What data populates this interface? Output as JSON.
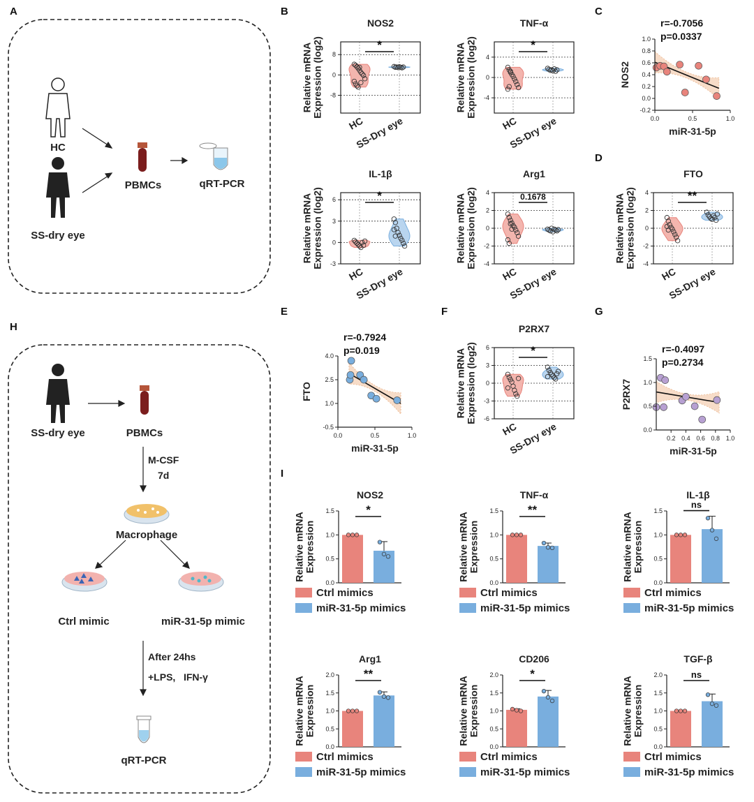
{
  "colors": {
    "red": "#E8847C",
    "blue": "#79AEDE",
    "purple": "#B7A0D2",
    "redFill": "#F3B5AE",
    "blueFill": "#B9D5EF",
    "bandFill": "#F6D7BF"
  },
  "panel_labels": [
    "A",
    "B",
    "C",
    "D",
    "E",
    "F",
    "G",
    "H",
    "I"
  ],
  "schematic_a": {
    "hc": "HC",
    "ss": "SS-dry eye",
    "pbmcs": "PBMCs",
    "qrt": "qRT-PCR"
  },
  "schematic_h": {
    "ss": "SS-dry eye",
    "pbmcs": "PBMCs",
    "mcsf": "M-CSF",
    "days": "7d",
    "macrophage": "Macrophage",
    "ctrl": "Ctrl mimic",
    "mir": "miR-31-5p mimic",
    "after": "After 24hs",
    "lps": "+LPS,   IFN-γ",
    "qrt": "qRT-PCR"
  },
  "chart_data": [
    {
      "id": "B-NOS2",
      "type": "violin",
      "title": "NOS2",
      "ylabel": [
        "Relative mRNA",
        "Expression (log2)"
      ],
      "categories": [
        "HC",
        "SS-Dry eye"
      ],
      "yticks": [
        8,
        0,
        -8
      ],
      "ylim": [
        -15,
        13
      ],
      "sig": "*",
      "groups": [
        {
          "name": "HC",
          "values": [
            4.2,
            3.8,
            3.2,
            2.6,
            1.8,
            1.0,
            0.4,
            -0.2,
            -1.5,
            -2.5,
            -3.5,
            -4.3,
            -4.8,
            3.0,
            -3.0
          ]
        },
        {
          "name": "SS-Dry eye",
          "values": [
            3.3,
            3.0,
            3.1,
            2.9,
            3.2,
            3.0,
            2.8,
            3.1
          ]
        }
      ]
    },
    {
      "id": "B-TNF",
      "type": "violin",
      "title": "TNF-α",
      "ylabel": [
        "Relative mRNA",
        "Expression (log2)"
      ],
      "categories": [
        "HC",
        "SS-Dry eye"
      ],
      "yticks": [
        4,
        0,
        -4
      ],
      "ylim": [
        -7,
        7
      ],
      "sig": "*",
      "groups": [
        {
          "name": "HC",
          "values": [
            2.0,
            1.5,
            1.0,
            0.6,
            0.2,
            -0.3,
            -0.8,
            -1.4,
            -2.0,
            -2.3,
            -1.8,
            1.2
          ]
        },
        {
          "name": "SS-Dry eye",
          "values": [
            1.8,
            1.6,
            1.4,
            1.5,
            1.3,
            1.7,
            1.2,
            1.5
          ]
        }
      ]
    },
    {
      "id": "B-IL1B",
      "type": "violin",
      "title": "IL-1β",
      "ylabel": [
        "Relative mRNA",
        "Expression (log2)"
      ],
      "categories": [
        "HC",
        "SS-Dry eye"
      ],
      "yticks": [
        6,
        3,
        0,
        -3
      ],
      "ylim": [
        -3,
        7
      ],
      "sig": "*",
      "groups": [
        {
          "name": "HC",
          "values": [
            0.3,
            0.1,
            -0.1,
            -0.3,
            -0.5,
            -0.7,
            0.0,
            -0.4,
            0.2
          ]
        },
        {
          "name": "SS-Dry eye",
          "values": [
            3.3,
            2.8,
            2.0,
            1.4,
            1.0,
            0.6,
            0.3,
            -0.1,
            -0.5,
            1.8,
            0.9
          ]
        }
      ]
    },
    {
      "id": "B-ARG1",
      "type": "violin",
      "title": "Arg1",
      "ylabel": [
        "Relative mRNA",
        "Expression (log2)"
      ],
      "categories": [
        "HC",
        "SS-Dry eye"
      ],
      "yticks": [
        4,
        2,
        0,
        -2,
        -4
      ],
      "ylim": [
        -4,
        4
      ],
      "sig": "0.1678",
      "groups": [
        {
          "name": "HC",
          "values": [
            1.6,
            1.2,
            0.9,
            0.6,
            0.3,
            0.1,
            -0.2,
            -0.5,
            -0.9,
            -1.3,
            -1.7,
            0.5,
            -0.1
          ]
        },
        {
          "name": "SS-Dry eye",
          "values": [
            -0.1,
            -0.2,
            -0.3,
            0.0,
            -0.4,
            -0.1,
            -0.2,
            -0.3,
            -0.15
          ]
        }
      ]
    },
    {
      "id": "D-FTO",
      "type": "violin",
      "title": "FTO",
      "ylabel": [
        "Relative mRNA",
        "Expression (log2)"
      ],
      "categories": [
        "HC",
        "SS-Dry eye"
      ],
      "yticks": [
        4,
        2,
        0,
        -2,
        -4
      ],
      "ylim": [
        -4,
        4
      ],
      "sig": "**",
      "groups": [
        {
          "name": "HC",
          "values": [
            1.2,
            0.8,
            0.4,
            0.1,
            -0.1,
            -0.4,
            -0.7,
            -1.0,
            -1.4,
            0.2,
            -0.2
          ]
        },
        {
          "name": "SS-Dry eye",
          "values": [
            1.8,
            1.5,
            1.3,
            1.1,
            1.0,
            1.4,
            1.2,
            0.9,
            1.6
          ]
        }
      ]
    },
    {
      "id": "F-P2RX7",
      "type": "violin",
      "title": "P2RX7",
      "ylabel": [
        "Relative mRNA",
        "Expression (log2)"
      ],
      "categories": [
        "HC",
        "SS-Dry eye"
      ],
      "yticks": [
        6,
        3,
        0,
        -3,
        -6
      ],
      "ylim": [
        -6,
        6
      ],
      "sig": "*",
      "groups": [
        {
          "name": "HC",
          "values": [
            1.5,
            1.0,
            0.6,
            0.2,
            -0.5,
            -1.2,
            -1.8,
            -2.2,
            0.8,
            -0.8
          ]
        },
        {
          "name": "SS-Dry eye",
          "values": [
            2.7,
            2.2,
            1.8,
            1.5,
            1.2,
            0.9,
            0.7,
            1.6,
            2.0,
            1.1
          ]
        }
      ]
    },
    {
      "id": "C",
      "type": "scatter",
      "ylabel": "NOS2",
      "xlabel": "miR-31-5p",
      "r": "r=-0.7056",
      "p": "p=0.0337",
      "xticks": [
        "0.0",
        "0.5",
        "1.0"
      ],
      "yticks": [
        "1.0",
        "0.8",
        "0.6",
        "0.4",
        "0.2",
        "0.0",
        "-0.2"
      ],
      "xlim": [
        0,
        1
      ],
      "ylim": [
        -0.2,
        1.0
      ],
      "points": [
        [
          0.02,
          0.52
        ],
        [
          0.07,
          0.55
        ],
        [
          0.12,
          0.54
        ],
        [
          0.16,
          0.45
        ],
        [
          0.33,
          0.57
        ],
        [
          0.4,
          0.1
        ],
        [
          0.58,
          0.55
        ],
        [
          0.68,
          0.32
        ],
        [
          0.82,
          0.04
        ]
      ],
      "fit": [
        [
          0.0,
          0.61
        ],
        [
          0.85,
          0.17
        ]
      ]
    },
    {
      "id": "E",
      "type": "scatter",
      "ylabel": "FTO",
      "xlabel": "miR-31-5p",
      "r": "r=-0.7924",
      "p": "p=0.019",
      "xticks": [
        "0.0",
        "0.5",
        "1.0"
      ],
      "yticks": [
        "4.0",
        "2.5",
        "1.0",
        "-0.5"
      ],
      "xlim": [
        0,
        1
      ],
      "ylim": [
        -0.5,
        4.0
      ],
      "points": [
        [
          0.16,
          2.5
        ],
        [
          0.17,
          2.8
        ],
        [
          0.18,
          3.7
        ],
        [
          0.3,
          2.8
        ],
        [
          0.35,
          2.5
        ],
        [
          0.45,
          1.5
        ],
        [
          0.52,
          1.3
        ],
        [
          0.8,
          1.2
        ]
      ],
      "fit": [
        [
          0.15,
          2.9
        ],
        [
          0.85,
          1.0
        ]
      ]
    },
    {
      "id": "G",
      "type": "scatter",
      "ylabel": "P2RX7",
      "xlabel": "miR-31-5p",
      "r": "r=-0.4097",
      "p": "p=0.2734",
      "xticks": [
        "0.2",
        "0.4",
        "0.6",
        "0.8",
        "1.0"
      ],
      "yticks": [
        "1.5",
        "1.0",
        "0.5",
        "0.0"
      ],
      "xlim": [
        0,
        1
      ],
      "ylim": [
        0,
        1.5
      ],
      "points": [
        [
          0.0,
          0.48
        ],
        [
          0.06,
          1.1
        ],
        [
          0.12,
          1.05
        ],
        [
          0.1,
          0.48
        ],
        [
          0.35,
          0.62
        ],
        [
          0.4,
          0.7
        ],
        [
          0.52,
          0.5
        ],
        [
          0.62,
          0.22
        ],
        [
          0.82,
          0.63
        ]
      ],
      "fit": [
        [
          0.0,
          0.8
        ],
        [
          0.85,
          0.58
        ]
      ]
    },
    {
      "id": "I-NOS2",
      "type": "bar",
      "title": "NOS2",
      "ylabel": [
        "Relative mRNA",
        "Expression"
      ],
      "yticks": [
        "1.5",
        "1.0",
        "0.5",
        "0.0"
      ],
      "ylim": [
        0,
        1.5
      ],
      "sig": "*",
      "legend": [
        "Ctrl mimics",
        "miR-31-5p mimics"
      ],
      "bars": [
        {
          "name": "Ctrl mimics",
          "value": 1.0,
          "err": 0,
          "points": [
            1.0,
            1.0,
            1.0
          ]
        },
        {
          "name": "miR-31-5p mimics",
          "value": 0.67,
          "err": 0.19,
          "points": [
            0.85,
            0.6,
            0.55
          ]
        }
      ]
    },
    {
      "id": "I-TNF",
      "type": "bar",
      "title": "TNF-α",
      "ylabel": [
        "Relative mRNA",
        "Expression"
      ],
      "yticks": [
        "1.5",
        "1.0",
        "0.5",
        "0.0"
      ],
      "ylim": [
        0,
        1.5
      ],
      "sig": "**",
      "legend": [
        "Ctrl mimics",
        "miR-31-5p mimics"
      ],
      "bars": [
        {
          "name": "Ctrl mimics",
          "value": 1.0,
          "err": 0,
          "points": [
            1.0,
            1.0,
            1.0
          ]
        },
        {
          "name": "miR-31-5p mimics",
          "value": 0.77,
          "err": 0.06,
          "points": [
            0.83,
            0.74,
            0.73
          ]
        }
      ]
    },
    {
      "id": "I-IL1B",
      "type": "bar",
      "title": "IL-1β",
      "ylabel": [
        "Relative mRNA",
        "Expression"
      ],
      "yticks": [
        "1.5",
        "1.0",
        "0.5",
        "0.0"
      ],
      "ylim": [
        0,
        1.5
      ],
      "sig": "ns",
      "legend": [
        "Ctrl mimics",
        "miR-31-5p mimics"
      ],
      "bars": [
        {
          "name": "Ctrl mimics",
          "value": 1.0,
          "err": 0,
          "points": [
            1.0,
            1.0,
            1.0
          ]
        },
        {
          "name": "miR-31-5p mimics",
          "value": 1.12,
          "err": 0.27,
          "points": [
            1.35,
            1.1,
            0.92
          ]
        }
      ]
    },
    {
      "id": "I-ARG1",
      "type": "bar",
      "title": "Arg1",
      "ylabel": [
        "Relative mRNA",
        "Expression"
      ],
      "yticks": [
        "2.0",
        "1.5",
        "1.0",
        "0.5",
        "0.0"
      ],
      "ylim": [
        0,
        2.0
      ],
      "sig": "**",
      "legend": [
        "Ctrl mimics",
        "miR-31-5p mimics"
      ],
      "bars": [
        {
          "name": "Ctrl mimics",
          "value": 1.0,
          "err": 0,
          "points": [
            1.0,
            1.0,
            1.0
          ]
        },
        {
          "name": "miR-31-5p mimics",
          "value": 1.43,
          "err": 0.1,
          "points": [
            1.52,
            1.4,
            1.37
          ]
        }
      ]
    },
    {
      "id": "I-CD206",
      "type": "bar",
      "title": "CD206",
      "ylabel": [
        "Relative mRNA",
        "Expression"
      ],
      "yticks": [
        "2.0",
        "1.5",
        "1.0",
        "0.5",
        "0.0"
      ],
      "ylim": [
        0,
        2.0
      ],
      "sig": "*",
      "legend": [
        "Ctrl mimics",
        "miR-31-5p mimics"
      ],
      "bars": [
        {
          "name": "Ctrl mimics",
          "value": 1.03,
          "err": 0.03,
          "points": [
            1.05,
            1.02,
            1.0
          ]
        },
        {
          "name": "miR-31-5p mimics",
          "value": 1.4,
          "err": 0.17,
          "points": [
            1.55,
            1.38,
            1.28
          ]
        }
      ]
    },
    {
      "id": "I-TGFB",
      "type": "bar",
      "title": "TGF-β",
      "ylabel": [
        "Relative mRNA",
        "Expression"
      ],
      "yticks": [
        "2.0",
        "1.5",
        "1.0",
        "0.5",
        "0.0"
      ],
      "ylim": [
        0,
        2.0
      ],
      "sig": "ns",
      "legend": [
        "Ctrl mimics",
        "miR-31-5p mimics"
      ],
      "bars": [
        {
          "name": "Ctrl mimics",
          "value": 1.0,
          "err": 0,
          "points": [
            1.0,
            1.0,
            1.0
          ]
        },
        {
          "name": "miR-31-5p mimics",
          "value": 1.27,
          "err": 0.2,
          "points": [
            1.45,
            1.2,
            1.15
          ]
        }
      ]
    }
  ]
}
